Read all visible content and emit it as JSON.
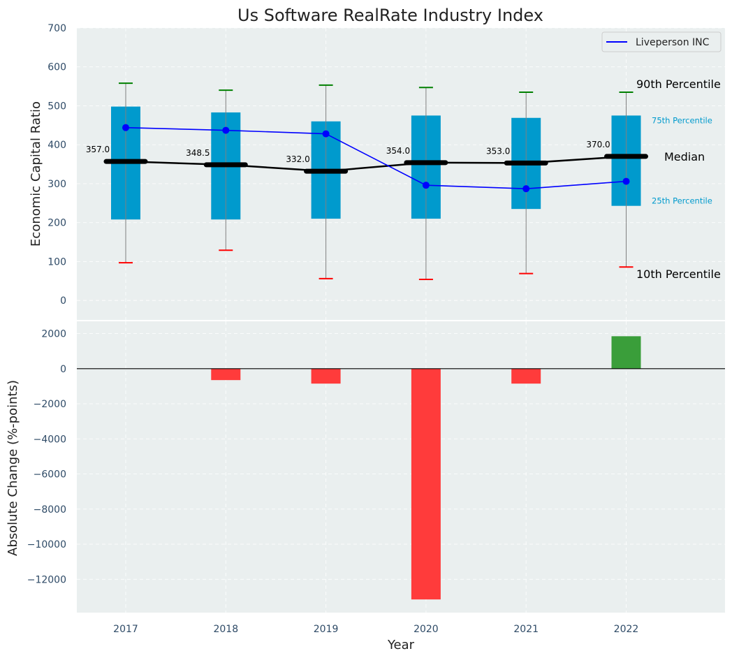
{
  "chart_data": [
    {
      "type": "box",
      "title": "Us Software RealRate Industry Index",
      "xlabel": "",
      "ylabel": "Economic Capital Ratio",
      "ylim": [
        -50,
        700
      ],
      "yticks": [
        0,
        100,
        200,
        300,
        400,
        500,
        600,
        700
      ],
      "grid": true,
      "categories": [
        "2017",
        "2018",
        "2019",
        "2020",
        "2021",
        "2022"
      ],
      "p10": [
        97,
        129,
        56,
        54,
        69,
        86
      ],
      "p25": [
        208,
        208,
        210,
        210,
        235,
        243
      ],
      "median": [
        357.0,
        348.5,
        332.0,
        354.0,
        353.0,
        370.0
      ],
      "median_labels": [
        "357.0",
        "348.5",
        "332.0",
        "354.0",
        "353.0",
        "370.0"
      ],
      "p75": [
        498,
        483,
        460,
        475,
        469,
        475
      ],
      "p90": [
        558,
        540,
        553,
        547,
        535,
        535
      ],
      "series": [
        {
          "name": "Liveperson INC",
          "values": [
            444,
            437,
            428,
            296,
            287,
            306
          ]
        }
      ],
      "legend": {
        "position": "top-right",
        "entries": [
          "Liveperson INC"
        ]
      },
      "annotations": {
        "p90": "90th Percentile",
        "p75": "75th Percentile",
        "median": "Median",
        "p25": "25th Percentile",
        "p10": "10th Percentile"
      },
      "colors": {
        "box": "#009ACD",
        "median": "#000000",
        "series": "#0000FF",
        "whisker_top": "#008000",
        "whisker_bottom": "#FF0000",
        "whisker_line": "#808080",
        "annotation_small": "#009ACD",
        "background": "#EAEFEF"
      }
    },
    {
      "type": "bar",
      "xlabel": "Year",
      "ylabel": "Absolute Change (%-points)",
      "ylim": [
        -13900,
        2700
      ],
      "yticks": [
        2000,
        0,
        -2000,
        -4000,
        -6000,
        -8000,
        -10000,
        -12000
      ],
      "ytick_labels": [
        "2000",
        "0",
        "−2000",
        "−4000",
        "−6000",
        "−8000",
        "−10000",
        "−12000"
      ],
      "grid": true,
      "categories": [
        "2017",
        "2018",
        "2019",
        "2020",
        "2021",
        "2022"
      ],
      "values": [
        0,
        -650,
        -850,
        -13150,
        -850,
        1850
      ],
      "colors": {
        "negative": "#FF3B3B",
        "positive": "#3A9E3A",
        "zero_line": "#000000"
      }
    }
  ]
}
